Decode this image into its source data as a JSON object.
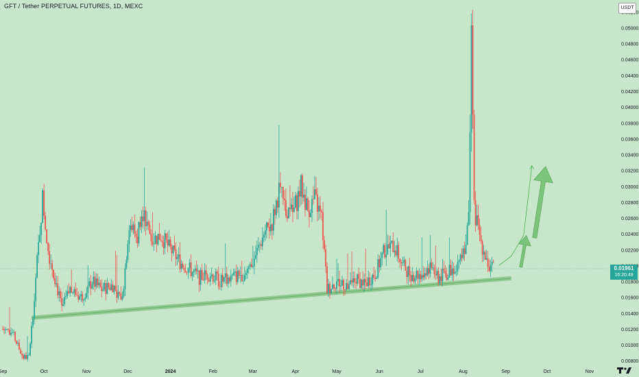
{
  "header": {
    "title": "GFT / Tether PERPETUAL FUTURES, 1D, MEXC",
    "unit": "USDT"
  },
  "last_price": {
    "value": "0.01961",
    "countdown": "16:20:49"
  },
  "colors": {
    "background": "#c8e6c9",
    "up": "#26a69a",
    "down": "#ef5350",
    "support_line": "#8bc58b",
    "arrow": "#6fbf6f"
  },
  "logo_icon": "tradingview-logo-icon",
  "chart_data": {
    "type": "candlestick",
    "title": "GFT / Tether PERPETUAL FUTURES, 1D, MEXC",
    "ylabel": "USDT",
    "ylim": [
      0.0075,
      0.0535
    ],
    "y_ticks": [
      "0.00800",
      "0.01000",
      "0.01200",
      "0.01400",
      "0.01600",
      "0.01800",
      "0.02000",
      "0.02200",
      "0.02400",
      "0.02600",
      "0.02800",
      "0.03000",
      "0.03200",
      "0.03400",
      "0.03600",
      "0.03800",
      "0.04000",
      "0.04200",
      "0.04400",
      "0.04600",
      "0.04800",
      "0.05000",
      "0.05200"
    ],
    "x_ticks": [
      "Sep",
      "Oct",
      "Nov",
      "Dec",
      "2024",
      "Feb",
      "Mar",
      "Apr",
      "May",
      "Jun",
      "Jul",
      "Aug",
      "Sep",
      "Oct",
      "Nov"
    ],
    "grid": false,
    "price_path": [
      [
        "2023-09-01",
        0.012
      ],
      [
        "2023-09-08",
        0.0115
      ],
      [
        "2023-09-13",
        0.0095
      ],
      [
        "2023-09-16",
        0.0084
      ],
      [
        "2023-09-20",
        0.0085
      ],
      [
        "2023-09-23",
        0.014
      ],
      [
        "2023-09-26",
        0.0205
      ],
      [
        "2023-09-30",
        0.0285
      ],
      [
        "2023-10-04",
        0.022
      ],
      [
        "2023-10-09",
        0.0185
      ],
      [
        "2023-10-14",
        0.0145
      ],
      [
        "2023-10-20",
        0.017
      ],
      [
        "2023-10-28",
        0.016
      ],
      [
        "2023-11-05",
        0.018
      ],
      [
        "2023-11-12",
        0.017
      ],
      [
        "2023-11-20",
        0.0175
      ],
      [
        "2023-11-27",
        0.0158
      ],
      [
        "2023-12-02",
        0.0255
      ],
      [
        "2023-12-08",
        0.0235
      ],
      [
        "2023-12-11",
        0.0275
      ],
      [
        "2023-12-18",
        0.0232
      ],
      [
        "2023-12-25",
        0.0238
      ],
      [
        "2024-01-01",
        0.022
      ],
      [
        "2024-01-08",
        0.0205
      ],
      [
        "2024-01-15",
        0.0195
      ],
      [
        "2024-01-22",
        0.0185
      ],
      [
        "2024-01-30",
        0.019
      ],
      [
        "2024-02-06",
        0.018
      ],
      [
        "2024-02-15",
        0.0185
      ],
      [
        "2024-02-23",
        0.019
      ],
      [
        "2024-03-01",
        0.0205
      ],
      [
        "2024-03-08",
        0.0235
      ],
      [
        "2024-03-15",
        0.0255
      ],
      [
        "2024-03-20",
        0.0295
      ],
      [
        "2024-03-25",
        0.027
      ],
      [
        "2024-03-30",
        0.0265
      ],
      [
        "2024-04-05",
        0.03
      ],
      [
        "2024-04-10",
        0.027
      ],
      [
        "2024-04-15",
        0.0285
      ],
      [
        "2024-04-20",
        0.026
      ],
      [
        "2024-04-24",
        0.017
      ],
      [
        "2024-05-01",
        0.018
      ],
      [
        "2024-05-08",
        0.0175
      ],
      [
        "2024-05-15",
        0.0182
      ],
      [
        "2024-05-22",
        0.0178
      ],
      [
        "2024-05-29",
        0.019
      ],
      [
        "2024-06-05",
        0.022
      ],
      [
        "2024-06-12",
        0.0225
      ],
      [
        "2024-06-18",
        0.02
      ],
      [
        "2024-06-25",
        0.0188
      ],
      [
        "2024-07-02",
        0.019
      ],
      [
        "2024-07-09",
        0.02
      ],
      [
        "2024-07-14",
        0.0185
      ],
      [
        "2024-07-20",
        0.019
      ],
      [
        "2024-07-27",
        0.02
      ],
      [
        "2024-08-03",
        0.023
      ],
      [
        "2024-08-05",
        0.026
      ],
      [
        "2024-08-07",
        0.051
      ],
      [
        "2024-08-09",
        0.027
      ],
      [
        "2024-08-14",
        0.023
      ],
      [
        "2024-08-18",
        0.021
      ],
      [
        "2024-08-20",
        0.0195
      ],
      [
        "2024-08-23",
        0.0196
      ]
    ],
    "support_line": [
      [
        "2023-09-22",
        0.0134
      ],
      [
        "2024-09-05",
        0.0184
      ]
    ],
    "projection_path": [
      [
        "2024-08-27",
        0.02
      ],
      [
        "2024-09-05",
        0.0212
      ],
      [
        "2024-09-14",
        0.0238
      ],
      [
        "2024-09-20",
        0.0326
      ]
    ],
    "arrows": [
      {
        "from": [
          "2024-09-12",
          0.0198
        ],
        "to": [
          "2024-09-16",
          0.0238
        ]
      },
      {
        "from": [
          "2024-09-22",
          0.0235
        ],
        "to": [
          "2024-09-30",
          0.0325
        ]
      }
    ]
  }
}
